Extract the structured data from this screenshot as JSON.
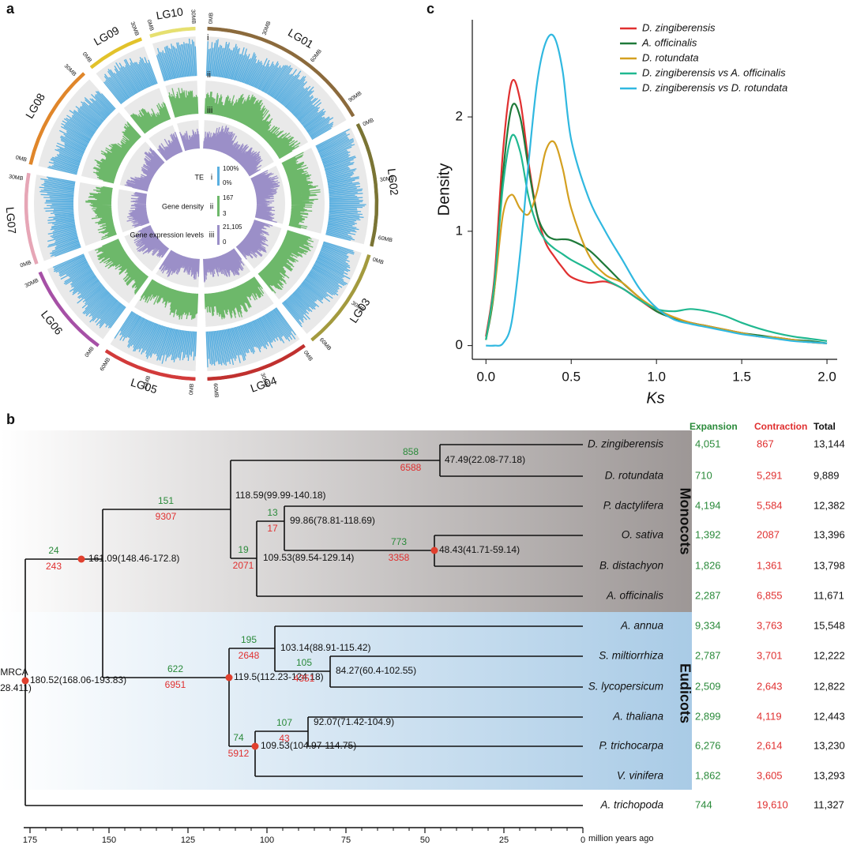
{
  "panel_labels": [
    "a",
    "b",
    "c"
  ],
  "circos": {
    "chromosomes": [
      {
        "name": "LG01",
        "ticks": [
          "0MB",
          "30MB",
          "60MB",
          "90MB"
        ],
        "color": "#8b6a3c"
      },
      {
        "name": "LG02",
        "ticks": [
          "0MB",
          "30MB",
          "60MB"
        ],
        "color": "#7a7434"
      },
      {
        "name": "LG03",
        "ticks": [
          "0MB",
          "30MB",
          "60MB"
        ],
        "color": "#a39a3e"
      },
      {
        "name": "LG04",
        "ticks": [
          "0MB",
          "30MB",
          "60MB"
        ],
        "color": "#c0302e"
      },
      {
        "name": "LG05",
        "ticks": [
          "0MB",
          "30MB",
          "60MB"
        ],
        "color": "#d23a3a"
      },
      {
        "name": "LG06",
        "ticks": [
          "0MB",
          "30MB"
        ],
        "color": "#a650a6"
      },
      {
        "name": "LG07",
        "ticks": [
          "0MB",
          "30MB"
        ],
        "color": "#e6a6b6"
      },
      {
        "name": "LG08",
        "ticks": [
          "0MB",
          "30MB"
        ],
        "color": "#e0862a"
      },
      {
        "name": "LG09",
        "ticks": [
          "0MB",
          "30MB"
        ],
        "color": "#e2c22a"
      },
      {
        "name": "LG10",
        "ticks": [
          "0MB",
          "30MB"
        ],
        "color": "#e6e070"
      }
    ],
    "legend": [
      {
        "name": "TE",
        "track": "i",
        "max": "100%",
        "min": "0%",
        "color": "#5aafe0"
      },
      {
        "name": "Gene density",
        "track": "ii",
        "max": 167,
        "min": 3,
        "color": "#6db86a"
      },
      {
        "name": "Gene expression levels",
        "track": "iii",
        "max": "21,105",
        "min": 0,
        "color": "#9b8fc8"
      }
    ]
  },
  "tree": {
    "root": {
      "name": "MRCA",
      "value": "(28.411)",
      "age": "180.52(168.06-193.83)"
    },
    "nodes": [
      {
        "age": "161.09(148.46-172.8)",
        "expansion": 24,
        "contraction": 243
      },
      {
        "age": "118.59(99.99-140.18)",
        "expansion": 151,
        "contraction": 9307
      },
      {
        "age": "47.49(22.08-77.18)",
        "expansion": 858,
        "contraction": 6588
      },
      {
        "age": "109.53(89.54-129.14)",
        "expansion": 19,
        "contraction": 2071
      },
      {
        "age": "99.86(78.81-118.69)",
        "expansion": 13,
        "contraction": 17
      },
      {
        "age": "48.43(41.71-59.14)",
        "expansion": 773,
        "contraction": 3358
      },
      {
        "age": "119.5(112.23-124.18)",
        "expansion": 622,
        "contraction": 6951
      },
      {
        "age": "103.14(88.91-115.42)",
        "expansion": 195,
        "contraction": 2648
      },
      {
        "age": "84.27(60.4-102.55)",
        "expansion": 105,
        "contraction": 4351
      },
      {
        "age": "109.53(104.97-114.75)",
        "expansion": 74,
        "contraction": 5912
      },
      {
        "age": "92.07(71.42-104.9)",
        "expansion": 107,
        "contraction": 43
      }
    ],
    "clades": [
      "Monocots",
      "Eudicots"
    ],
    "columns": [
      "Expansion",
      "Contraction",
      "Total"
    ],
    "species": [
      {
        "name": "D. zingiberensis",
        "expansion": "4,051",
        "contraction": "867",
        "total": "13,144"
      },
      {
        "name": "D. rotundata",
        "expansion": "710",
        "contraction": "5,291",
        "total": "9,889"
      },
      {
        "name": "P. dactylifera",
        "expansion": "4,194",
        "contraction": "5,584",
        "total": "12,382"
      },
      {
        "name": "O. sativa",
        "expansion": "1,392",
        "contraction": "2087",
        "total": "13,396"
      },
      {
        "name": "B. distachyon",
        "expansion": "1,826",
        "contraction": "1,361",
        "total": "13,798"
      },
      {
        "name": "A. officinalis",
        "expansion": "2,287",
        "contraction": "6,855",
        "total": "11,671"
      },
      {
        "name": "A. annua",
        "expansion": "9,334",
        "contraction": "3,763",
        "total": "15,548"
      },
      {
        "name": "S. miltiorrhiza",
        "expansion": "2,787",
        "contraction": "3,701",
        "total": "12,222"
      },
      {
        "name": "S. lycopersicum",
        "expansion": "2,509",
        "contraction": "2,643",
        "total": "12,822"
      },
      {
        "name": "A. thaliana",
        "expansion": "2,899",
        "contraction": "4,119",
        "total": "12,443"
      },
      {
        "name": "P. trichocarpa",
        "expansion": "6,276",
        "contraction": "2,614",
        "total": "13,230"
      },
      {
        "name": "V. vinifera",
        "expansion": "1,862",
        "contraction": "3,605",
        "total": "13,293"
      },
      {
        "name": "A. trichopoda",
        "expansion": "744",
        "contraction": "19,610",
        "total": "11,327"
      }
    ],
    "time_axis": {
      "label": "million years ago",
      "ticks": [
        175,
        150,
        125,
        100,
        75,
        50,
        25,
        0
      ]
    }
  },
  "chart_data": {
    "type": "line",
    "xlabel": "Ks",
    "ylabel": "Density",
    "x": [
      0,
      0.05,
      0.1,
      0.15,
      0.2,
      0.25,
      0.3,
      0.35,
      0.4,
      0.45,
      0.5,
      0.6,
      0.7,
      0.8,
      0.9,
      1.0,
      1.1,
      1.2,
      1.3,
      1.4,
      1.5,
      1.6,
      1.7,
      1.8,
      1.9,
      2.0
    ],
    "xlim": [
      -0.08,
      2.06
    ],
    "ylim": [
      -0.12,
      2.85
    ],
    "xticks": [
      {
        "value": 0,
        "label": "0.0"
      },
      {
        "value": 0.5,
        "label": "0.5"
      },
      {
        "value": 1,
        "label": "1.0"
      },
      {
        "value": 1.5,
        "label": "1.5"
      },
      {
        "value": 2,
        "label": "2.0"
      }
    ],
    "yticks": [
      0,
      1,
      2
    ],
    "series": [
      {
        "name": "D. zingiberensis",
        "color": "#e03030",
        "values": [
          0.08,
          0.6,
          1.7,
          2.3,
          2.15,
          1.6,
          1.15,
          0.9,
          0.78,
          0.68,
          0.6,
          0.55,
          0.56,
          0.5,
          0.4,
          0.3,
          0.24,
          0.2,
          0.17,
          0.14,
          0.11,
          0.08,
          0.07,
          0.05,
          0.03,
          0.02
        ]
      },
      {
        "name": "A. officinalis",
        "color": "#1f7a3a",
        "values": [
          0.05,
          0.5,
          1.5,
          2.08,
          2.0,
          1.55,
          1.15,
          0.98,
          0.93,
          0.93,
          0.92,
          0.84,
          0.7,
          0.55,
          0.42,
          0.3,
          0.24,
          0.2,
          0.17,
          0.14,
          0.11,
          0.09,
          0.07,
          0.05,
          0.04,
          0.02
        ]
      },
      {
        "name": "D. rotundata",
        "color": "#d4a020",
        "values": [
          0.05,
          0.5,
          1.15,
          1.32,
          1.2,
          1.15,
          1.35,
          1.7,
          1.78,
          1.55,
          1.2,
          0.8,
          0.62,
          0.55,
          0.42,
          0.32,
          0.25,
          0.2,
          0.17,
          0.14,
          0.11,
          0.08,
          0.07,
          0.05,
          0.03,
          0.02
        ]
      },
      {
        "name": "D. zingiberensis vs A. officinalis",
        "color": "#20b890",
        "values": [
          0.05,
          0.55,
          1.4,
          1.83,
          1.7,
          1.3,
          1.05,
          0.92,
          0.85,
          0.8,
          0.75,
          0.67,
          0.58,
          0.5,
          0.4,
          0.32,
          0.3,
          0.32,
          0.3,
          0.26,
          0.2,
          0.15,
          0.11,
          0.08,
          0.06,
          0.04
        ]
      },
      {
        "name": "D. zingiberensis vs D. rotundata",
        "color": "#30b8e0",
        "values": [
          0,
          0,
          0.02,
          0.2,
          0.8,
          1.6,
          2.3,
          2.65,
          2.7,
          2.4,
          1.8,
          1.3,
          1.0,
          0.75,
          0.5,
          0.33,
          0.23,
          0.19,
          0.16,
          0.13,
          0.1,
          0.08,
          0.06,
          0.04,
          0.03,
          0.02
        ]
      }
    ]
  }
}
